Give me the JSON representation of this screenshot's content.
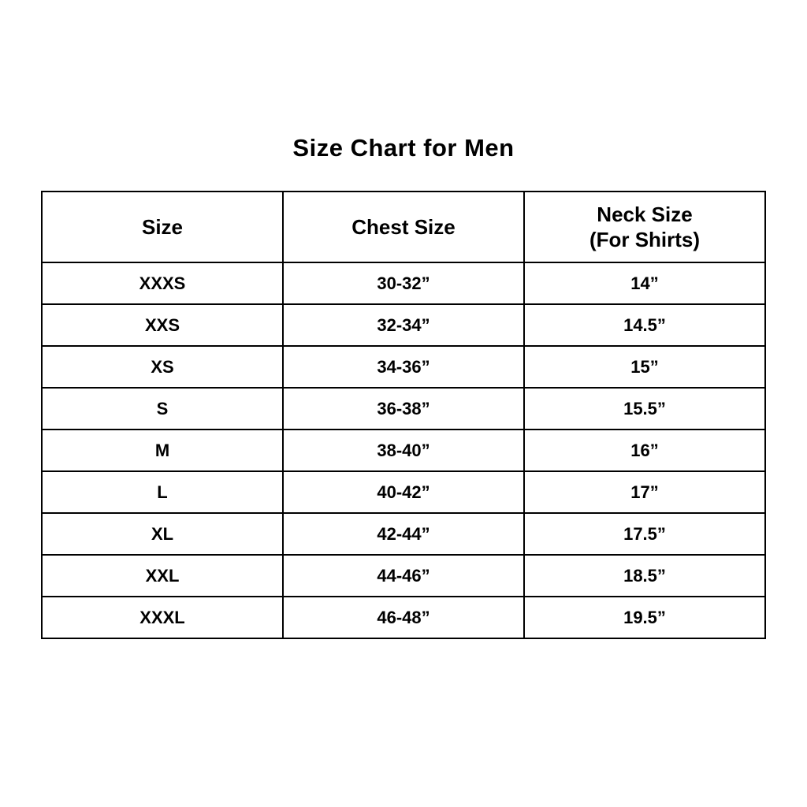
{
  "page": {
    "title": "Size Chart for Men"
  },
  "table": {
    "headers": [
      "Size",
      "Chest Size",
      "Neck Size\n(For Shirts)"
    ],
    "rows": [
      {
        "size": "XXXS",
        "chest": "30-32”",
        "neck": "14”"
      },
      {
        "size": "XXS",
        "chest": "32-34”",
        "neck": "14.5”"
      },
      {
        "size": "XS",
        "chest": "34-36”",
        "neck": "15”"
      },
      {
        "size": "S",
        "chest": "36-38”",
        "neck": "15.5”"
      },
      {
        "size": "M",
        "chest": "38-40”",
        "neck": "16”"
      },
      {
        "size": "L",
        "chest": "40-42”",
        "neck": "17”"
      },
      {
        "size": "XL",
        "chest": "42-44”",
        "neck": "17.5”"
      },
      {
        "size": "XXL",
        "chest": "44-46”",
        "neck": "18.5”"
      },
      {
        "size": "XXXL",
        "chest": "46-48”",
        "neck": "19.5”"
      }
    ],
    "colors": {
      "border": "#000000",
      "background": "#ffffff",
      "text": "#000000"
    }
  }
}
